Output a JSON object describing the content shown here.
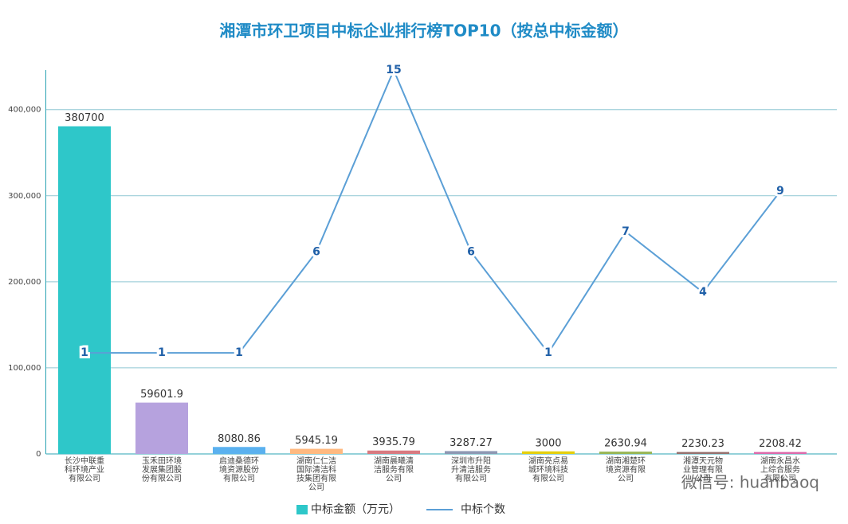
{
  "chart_data": {
    "type": "bar-line",
    "title": "湘潭市环卫项目中标企业排行榜TOP10（按总中标金额）",
    "categories": [
      "长沙中联重科环境产业有限公司",
      "玉禾田环境发展集团股份有限公司",
      "启迪桑德环境资源股份有限公司",
      "湖南仁仁洁国际清洁科技集团有限公司",
      "湖南晨曦清洁服务有限公司",
      "深圳市升阳升清洁服务有限公司",
      "湖南亮点易城环境科技有限公司",
      "湖南湘楚环境资源有限公司",
      "湘潭天元物业管理有限公司",
      "湖南永昌水上综合服务有限公司"
    ],
    "series": [
      {
        "name": "中标金额（万元）",
        "kind": "bar",
        "color": "#2ec7c9",
        "colors": [
          "#2ec7c9",
          "#b6a2de",
          "#5ab1ef",
          "#ffb980",
          "#d87a80",
          "#8d98b3",
          "#e5cf0d",
          "#97b552",
          "#95706d",
          "#dc69aa"
        ],
        "values": [
          380700,
          59601.9,
          8080.86,
          5945.19,
          3935.79,
          3287.27,
          3000,
          2630.94,
          2230.23,
          2208.42
        ]
      },
      {
        "name": "中标个数",
        "kind": "line",
        "axis": "y2",
        "color": "#5b9fd6",
        "values": [
          1,
          1,
          1,
          6,
          15,
          6,
          1,
          7,
          4,
          9
        ]
      }
    ],
    "ylim": [
      0,
      446000
    ],
    "yticks": [
      0,
      {
        "value": 100000,
        "label": "100,000"
      },
      {
        "value": 200000,
        "label": "200,000"
      },
      {
        "value": 300000,
        "label": "300,000"
      },
      {
        "value": 400000,
        "label": "400,000"
      }
    ],
    "y2lim": [
      -4,
      15
    ],
    "grid": true,
    "legend": "bottom",
    "watermark": "微信号: huanbaoq"
  }
}
